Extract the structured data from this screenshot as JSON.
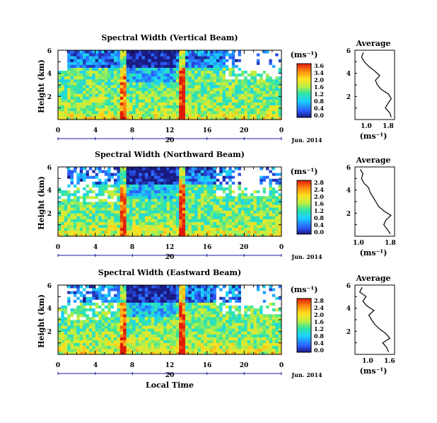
{
  "chart_data": [
    {
      "type": "heatmap",
      "title": "Spectral Width (Vertical Beam)",
      "ylabel": "Height (km)",
      "xlim": [
        0,
        24
      ],
      "ylim": [
        0,
        6
      ],
      "x_ticks": [
        "0",
        "4",
        "8",
        "12",
        "16",
        "20",
        "0"
      ],
      "y_ticks": [
        "6",
        "4",
        "2"
      ],
      "date_tick": "20",
      "date_label": "Jun. 2014",
      "colorbar": {
        "unit": "(ms⁻¹)",
        "ticks": [
          "3.6",
          "3.4",
          "2.0",
          "1.6",
          "1.2",
          "0.8",
          "0.4",
          "0.0"
        ]
      },
      "average": {
        "title": "Average",
        "xlabel": "(ms⁻¹)",
        "x_ticks": [
          "1.0",
          "1.8"
        ],
        "y_ticks": [
          "6",
          "4",
          "2"
        ],
        "xlim": [
          0.7,
          1.9
        ],
        "ylim": [
          0,
          6
        ],
        "height_km": [
          0.2,
          0.6,
          1.0,
          1.4,
          1.8,
          2.2,
          2.6,
          3.0,
          3.4,
          3.8,
          4.2,
          4.6,
          5.0,
          5.4,
          5.8
        ],
        "width": [
          1.8,
          1.75,
          1.62,
          1.7,
          1.8,
          1.72,
          1.5,
          1.38,
          1.32,
          1.45,
          1.3,
          1.12,
          0.98,
          0.9,
          0.95
        ]
      }
    },
    {
      "type": "heatmap",
      "title": "Spectral Width (Northward Beam)",
      "ylabel": "Height (km)",
      "xlim": [
        0,
        24
      ],
      "ylim": [
        0,
        6
      ],
      "x_ticks": [
        "0",
        "4",
        "8",
        "12",
        "16",
        "20",
        "0"
      ],
      "y_ticks": [
        "6",
        "4",
        "2"
      ],
      "date_tick": "20",
      "date_label": "Jun. 2014",
      "colorbar": {
        "unit": "(ms⁻¹)",
        "ticks": [
          "2.8",
          "2.4",
          "2.0",
          "1.6",
          "1.2",
          "0.8",
          "0.4",
          "0.0"
        ]
      },
      "average": {
        "title": "Average",
        "xlabel": "(ms⁻¹)",
        "x_ticks": [
          "1.0",
          "1.8"
        ],
        "y_ticks": [
          "6",
          "4",
          "2"
        ],
        "xlim": [
          0.8,
          1.9
        ],
        "ylim": [
          0,
          6
        ],
        "height_km": [
          0.2,
          0.6,
          1.0,
          1.4,
          1.8,
          2.2,
          2.6,
          3.0,
          3.4,
          3.8,
          4.2,
          4.6,
          5.0,
          5.4,
          5.8
        ],
        "width": [
          1.78,
          1.7,
          1.6,
          1.66,
          1.8,
          1.6,
          1.45,
          1.38,
          1.3,
          1.22,
          1.18,
          1.05,
          0.98,
          1.02,
          0.95
        ]
      }
    },
    {
      "type": "heatmap",
      "title": "Spectral Width (Eastward Beam)",
      "ylabel": "Height (km)",
      "xlabel": "Local Time",
      "xlim": [
        0,
        24
      ],
      "ylim": [
        0,
        6
      ],
      "x_ticks": [
        "0",
        "4",
        "8",
        "12",
        "16",
        "20",
        "0"
      ],
      "y_ticks": [
        "6",
        "4",
        "2"
      ],
      "date_tick": "20",
      "date_label": "Jun. 2014",
      "colorbar": {
        "unit": "(ms⁻¹)",
        "ticks": [
          "2.8",
          "2.4",
          "2.0",
          "1.6",
          "1.2",
          "0.8",
          "0.4",
          "0.0"
        ]
      },
      "average": {
        "title": "Average",
        "xlabel": "(ms⁻¹)",
        "x_ticks": [
          "1.0",
          "1.6"
        ],
        "y_ticks": [
          "6",
          "4",
          "2"
        ],
        "xlim": [
          0.8,
          1.8
        ],
        "ylim": [
          0,
          6
        ],
        "height_km": [
          0.2,
          0.6,
          1.0,
          1.4,
          1.8,
          2.2,
          2.6,
          3.0,
          3.4,
          3.8,
          4.2,
          4.6,
          5.0,
          5.4,
          5.8
        ],
        "width": [
          1.65,
          1.6,
          1.5,
          1.68,
          1.58,
          1.42,
          1.3,
          1.22,
          1.15,
          1.28,
          1.1,
          1.0,
          1.08,
          0.92,
          0.98
        ]
      }
    }
  ]
}
